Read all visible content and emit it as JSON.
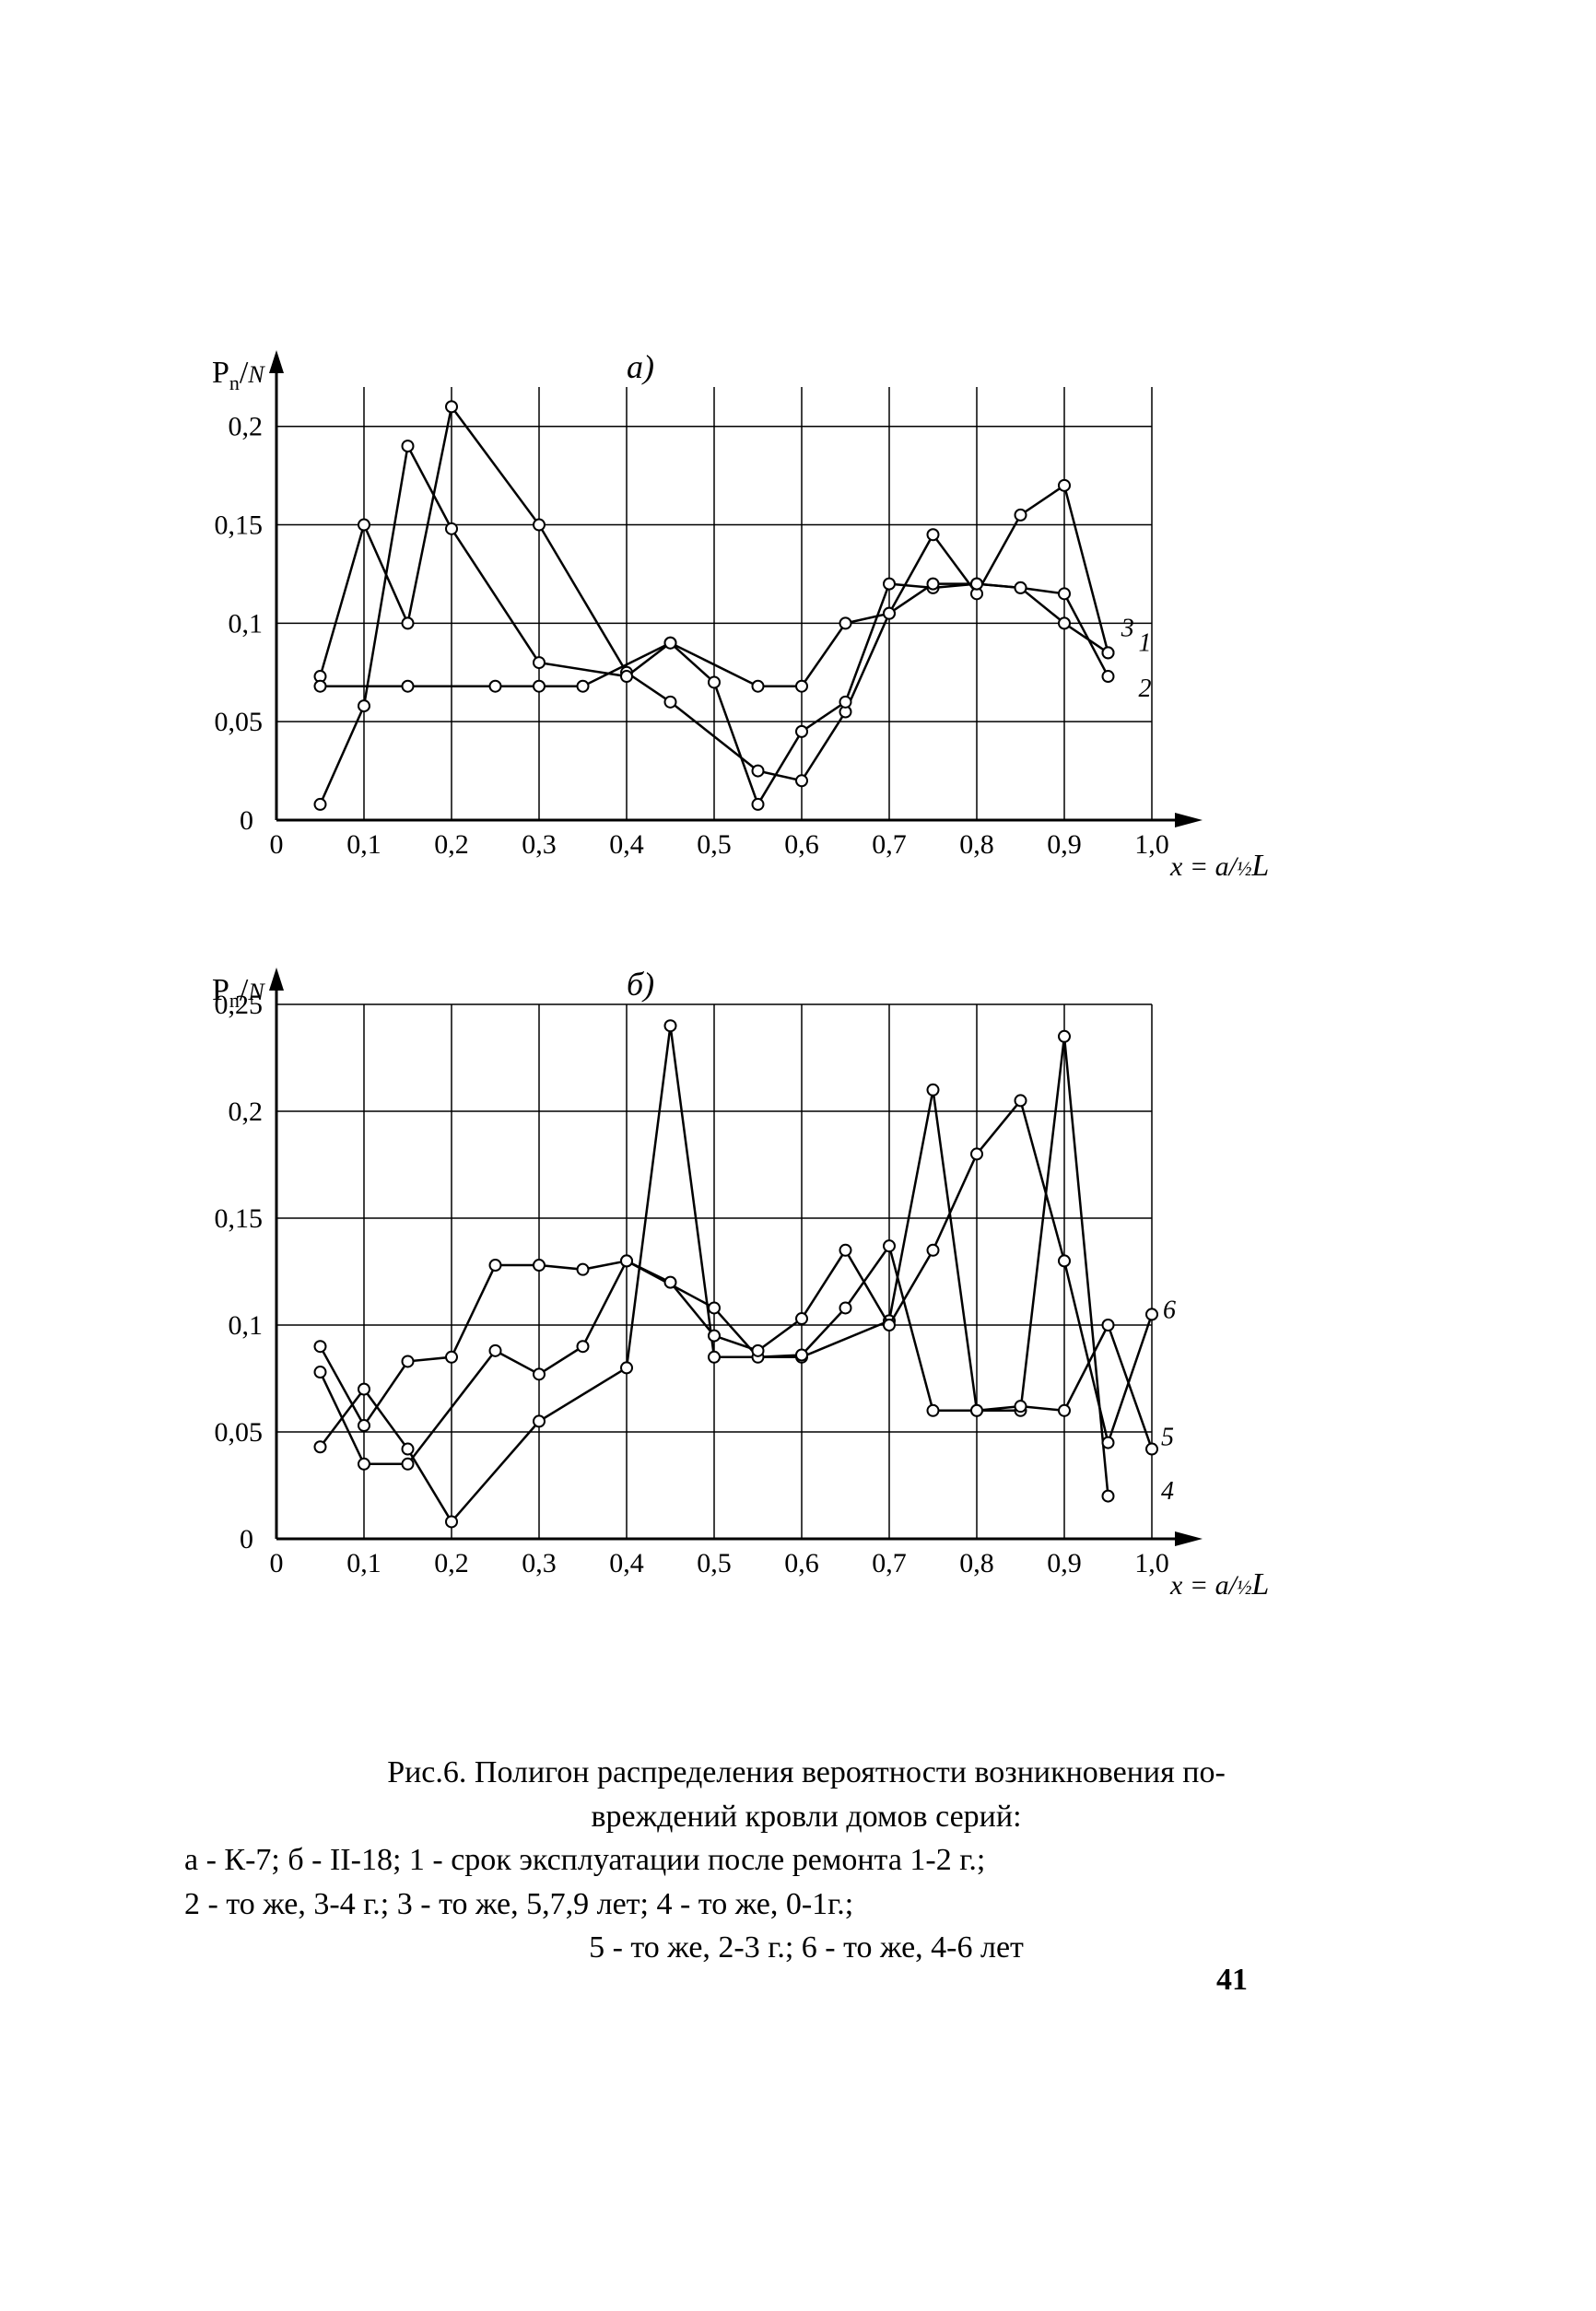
{
  "page_number": "41",
  "caption": {
    "line1": "Рис.6. Полигон распределения вероятности возникновения по-",
    "line2": "вреждений кровли домов серий:",
    "line3": "а - К-7; б - II-18; 1 - срок эксплуатации после ремонта 1-2 г.;",
    "line4": "2 - то же, 3-4 г.; 3 - то же, 5,7,9 лет; 4 - то же, 0-1г.;",
    "line5": "5 - то же, 2-3 г.; 6 - то же, 4-6 лет"
  },
  "chart_a": {
    "title": "а)",
    "ylabel": "P_n/N",
    "xlabel": "x = a/½L",
    "x_ticks": [
      "0",
      "0,1",
      "0,2",
      "0,3",
      "0,4",
      "0,5",
      "0,6",
      "0,7",
      "0,8",
      "0,9",
      "1,0"
    ],
    "y_ticks": [
      "0",
      "0,05",
      "0,1",
      "0,15",
      "0,2"
    ],
    "ylim": [
      0,
      0.22
    ],
    "xlim": [
      0,
      1.0
    ],
    "series_labels": [
      "1",
      "2",
      "3"
    ],
    "grid_color": "#000000",
    "line_color": "#000000",
    "marker_color": "#ffffff",
    "background": "#ffffff",
    "series": [
      {
        "name": "1",
        "x": [
          0.05,
          0.1,
          0.15,
          0.2,
          0.3,
          0.4,
          0.45,
          0.55,
          0.6,
          0.65,
          0.7,
          0.75,
          0.8,
          0.85,
          0.9,
          0.95
        ],
        "y": [
          0.073,
          0.15,
          0.1,
          0.21,
          0.15,
          0.075,
          0.06,
          0.025,
          0.02,
          0.055,
          0.105,
          0.145,
          0.115,
          0.155,
          0.17,
          0.085
        ]
      },
      {
        "name": "2",
        "x": [
          0.05,
          0.1,
          0.15,
          0.2,
          0.3,
          0.4,
          0.45,
          0.5,
          0.55,
          0.6,
          0.65,
          0.7,
          0.75,
          0.8,
          0.85,
          0.9,
          0.95
        ],
        "y": [
          0.008,
          0.058,
          0.19,
          0.148,
          0.08,
          0.073,
          0.09,
          0.07,
          0.008,
          0.045,
          0.06,
          0.12,
          0.118,
          0.12,
          0.118,
          0.115,
          0.073
        ]
      },
      {
        "name": "3",
        "x": [
          0.05,
          0.15,
          0.25,
          0.3,
          0.35,
          0.45,
          0.55,
          0.6,
          0.65,
          0.7,
          0.75,
          0.8,
          0.85,
          0.9,
          0.95
        ],
        "y": [
          0.068,
          0.068,
          0.068,
          0.068,
          0.068,
          0.09,
          0.068,
          0.068,
          0.1,
          0.105,
          0.12,
          0.12,
          0.118,
          0.1,
          0.085
        ]
      }
    ]
  },
  "chart_b": {
    "title": "б)",
    "ylabel": "P_n/N",
    "xlabel": "x = a/½L",
    "x_ticks": [
      "0",
      "0,1",
      "0,2",
      "0,3",
      "0,4",
      "0,5",
      "0,6",
      "0,7",
      "0,8",
      "0,9",
      "1,0"
    ],
    "y_ticks": [
      "0",
      "0,05",
      "0,1",
      "0,15",
      "0,2",
      "0,25"
    ],
    "ylim": [
      0,
      0.25
    ],
    "xlim": [
      0,
      1.0
    ],
    "series_labels": [
      "4",
      "5",
      "6"
    ],
    "grid_color": "#000000",
    "line_color": "#000000",
    "marker_color": "#ffffff",
    "background": "#ffffff",
    "series": [
      {
        "name": "4",
        "x": [
          0.05,
          0.1,
          0.15,
          0.2,
          0.3,
          0.4,
          0.45,
          0.5,
          0.6,
          0.7,
          0.75,
          0.8,
          0.85,
          0.9,
          0.95
        ],
        "y": [
          0.043,
          0.07,
          0.042,
          0.008,
          0.055,
          0.08,
          0.24,
          0.085,
          0.085,
          0.102,
          0.21,
          0.06,
          0.06,
          0.235,
          0.02
        ]
      },
      {
        "name": "5",
        "x": [
          0.05,
          0.1,
          0.15,
          0.25,
          0.3,
          0.35,
          0.4,
          0.5,
          0.55,
          0.6,
          0.65,
          0.7,
          0.75,
          0.8,
          0.85,
          0.9,
          0.95,
          1.0
        ],
        "y": [
          0.078,
          0.035,
          0.035,
          0.088,
          0.077,
          0.09,
          0.13,
          0.108,
          0.085,
          0.086,
          0.108,
          0.137,
          0.06,
          0.06,
          0.062,
          0.06,
          0.1,
          0.042
        ]
      },
      {
        "name": "6",
        "x": [
          0.05,
          0.1,
          0.15,
          0.2,
          0.25,
          0.3,
          0.35,
          0.4,
          0.45,
          0.5,
          0.55,
          0.6,
          0.65,
          0.7,
          0.75,
          0.8,
          0.85,
          0.9,
          0.95,
          1.0
        ],
        "y": [
          0.09,
          0.053,
          0.083,
          0.085,
          0.128,
          0.128,
          0.126,
          0.13,
          0.12,
          0.095,
          0.088,
          0.103,
          0.135,
          0.1,
          0.135,
          0.18,
          0.205,
          0.13,
          0.045,
          0.105
        ]
      }
    ]
  }
}
